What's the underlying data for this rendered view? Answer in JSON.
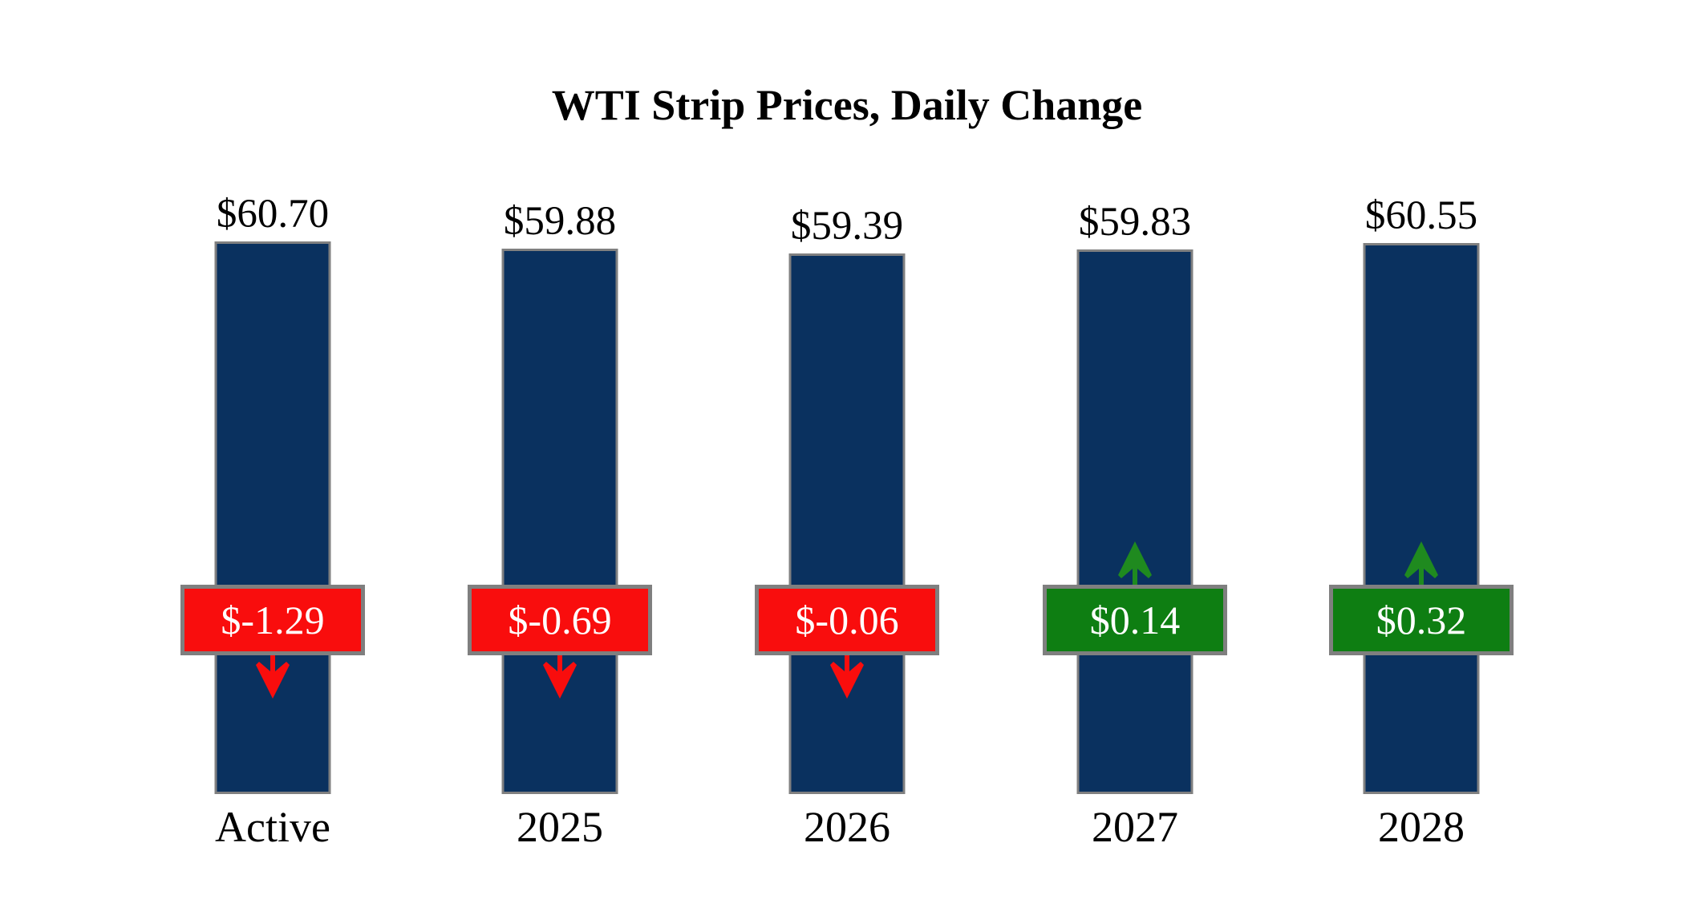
{
  "title": "WTI Strip Prices, Daily Change",
  "chart_data": {
    "type": "bar",
    "title": "WTI Strip Prices, Daily Change",
    "categories": [
      "Active",
      "2025",
      "2026",
      "2027",
      "2028"
    ],
    "series": [
      {
        "name": "WTI Strip Price",
        "values": [
          60.7,
          59.88,
          59.39,
          59.83,
          60.55
        ],
        "labels": [
          "$60.70",
          "$59.88",
          "$59.39",
          "$59.83",
          "$60.55"
        ]
      },
      {
        "name": "Daily Change",
        "values": [
          -1.29,
          -0.69,
          -0.06,
          0.14,
          0.32
        ],
        "labels": [
          "$-1.29",
          "$-0.69",
          "$-0.06",
          "$0.14",
          "$0.32"
        ]
      }
    ],
    "baseline": 0,
    "ylim": [
      0,
      62
    ],
    "grid": false,
    "legend": "none",
    "bar_orientation": "vertical"
  },
  "colors": {
    "background": "#FFFFFF",
    "bar_fill": "#0A315F",
    "bar_border": "#808080",
    "badge_border": "#7F7F7F",
    "negative_badge": "#F90D0D",
    "positive_badge": "#0E7E12",
    "negative_arrow": "#F90D0D",
    "positive_arrow": "#1F8A1F",
    "badge_text": "#FFFFFF",
    "label_text": "#000000"
  }
}
